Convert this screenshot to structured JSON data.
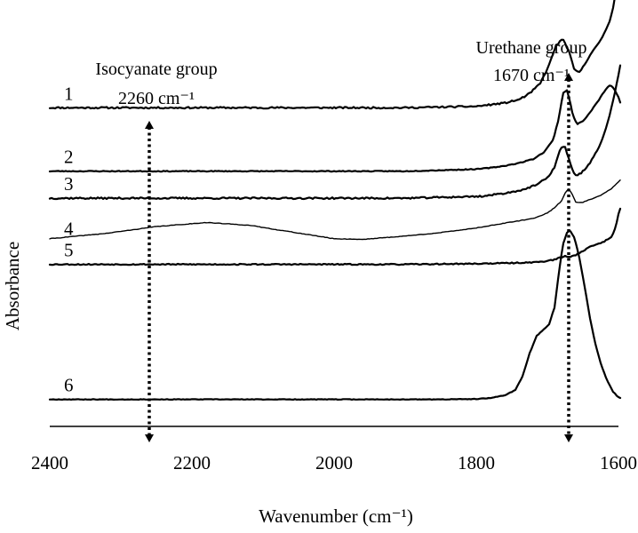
{
  "chart_data": {
    "type": "line",
    "title": "",
    "xlabel": "Wavenumber (cm⁻¹)",
    "ylabel": "Absorbance",
    "xlim": [
      2400,
      1600
    ],
    "x_reversed": true,
    "grid": false,
    "legend": "none",
    "x_ticks": [
      2400,
      2200,
      2000,
      1800,
      1600
    ],
    "y_units": "relative absorbance (offset per trace, arbitrary units)",
    "annotations": [
      {
        "name": "isocyanate",
        "line1": "Isocyanate group",
        "line2": "2260 cm⁻¹",
        "x": 2260
      },
      {
        "name": "urethane",
        "line1": "Urethane group",
        "line2": "1670 cm⁻¹",
        "x": 1670
      }
    ],
    "series": [
      {
        "label": "1",
        "baseline": 4.72,
        "noise": 0.012,
        "seed": 11,
        "x": [
          2400,
          1900,
          1800,
          1760,
          1740,
          1725,
          1710,
          1698,
          1688,
          1678,
          1670,
          1662,
          1655,
          1648,
          1640,
          1630,
          1620,
          1612,
          1606,
          1600,
          1598,
          1596
        ],
        "y": [
          0,
          0,
          0.02,
          0.07,
          0.12,
          0.21,
          0.36,
          0.62,
          0.92,
          1.02,
          0.84,
          0.56,
          0.52,
          0.64,
          0.78,
          0.92,
          1.1,
          1.3,
          1.55,
          2.1,
          2.55,
          2.82
        ]
      },
      {
        "label": "2",
        "baseline": 3.78,
        "noise": 0.006,
        "seed": 23,
        "x": [
          2400,
          1900,
          1800,
          1780,
          1760,
          1740,
          1720,
          1705,
          1692,
          1684,
          1678,
          1672,
          1668,
          1664,
          1658,
          1650,
          1642,
          1634,
          1626,
          1620,
          1612,
          1606,
          1600,
          1596
        ],
        "y": [
          0,
          0,
          0.03,
          0.05,
          0.08,
          0.12,
          0.18,
          0.28,
          0.46,
          0.78,
          1.16,
          1.2,
          1.02,
          0.82,
          0.7,
          0.74,
          0.84,
          0.96,
          1.08,
          1.18,
          1.28,
          1.22,
          1.1,
          0.96
        ]
      },
      {
        "label": "3",
        "baseline": 3.38,
        "noise": 0.012,
        "seed": 37,
        "x": [
          2400,
          1900,
          1820,
          1790,
          1770,
          1750,
          1730,
          1715,
          1700,
          1690,
          1682,
          1676,
          1670,
          1666,
          1660,
          1654,
          1648,
          1640,
          1630,
          1620,
          1612,
          1604,
          1598,
          1596
        ],
        "y": [
          0,
          0,
          0.02,
          0.03,
          0.06,
          0.09,
          0.14,
          0.2,
          0.3,
          0.46,
          0.72,
          0.78,
          0.6,
          0.44,
          0.34,
          0.36,
          0.42,
          0.52,
          0.7,
          0.95,
          1.25,
          1.6,
          1.95,
          2.0
        ]
      },
      {
        "label": "4",
        "baseline": 2.72,
        "noise": 0.004,
        "seed": 41,
        "x": [
          2400,
          2320,
          2250,
          2180,
          2120,
          2060,
          2000,
          1960,
          1900,
          1850,
          1800,
          1760,
          1720,
          1700,
          1690,
          1680,
          1675,
          1670,
          1665,
          1660,
          1650,
          1640,
          1625,
          1610,
          1600,
          1596
        ],
        "y": [
          0.06,
          0.14,
          0.24,
          0.3,
          0.26,
          0.16,
          0.06,
          0.05,
          0.1,
          0.15,
          0.22,
          0.29,
          0.36,
          0.44,
          0.52,
          0.62,
          0.74,
          0.8,
          0.72,
          0.6,
          0.6,
          0.64,
          0.7,
          0.8,
          0.9,
          0.95
        ]
      },
      {
        "label": "5",
        "baseline": 2.4,
        "noise": 0.008,
        "seed": 53,
        "x": [
          2400,
          1900,
          1800,
          1750,
          1720,
          1700,
          1690,
          1682,
          1676,
          1668,
          1660,
          1650,
          1640,
          1630,
          1620,
          1610,
          1604,
          1600,
          1596
        ],
        "y": [
          0,
          0,
          0.01,
          0.02,
          0.03,
          0.05,
          0.07,
          0.1,
          0.12,
          0.11,
          0.14,
          0.2,
          0.26,
          0.3,
          0.34,
          0.4,
          0.55,
          0.75,
          0.88
        ]
      },
      {
        "label": "6",
        "baseline": 0.4,
        "noise": 0.004,
        "seed": 67,
        "x": [
          2400,
          1850,
          1800,
          1780,
          1760,
          1745,
          1735,
          1725,
          1715,
          1705,
          1698,
          1690,
          1684,
          1678,
          1672,
          1668,
          1662,
          1655,
          1648,
          1640,
          1632,
          1624,
          1616,
          1608,
          1600,
          1596
        ],
        "y": [
          0,
          0,
          0.005,
          0.02,
          0.06,
          0.14,
          0.34,
          0.68,
          0.94,
          1.04,
          1.1,
          1.36,
          1.86,
          2.3,
          2.48,
          2.5,
          2.4,
          2.1,
          1.7,
          1.2,
          0.8,
          0.5,
          0.28,
          0.12,
          0.03,
          0.01
        ]
      }
    ]
  }
}
